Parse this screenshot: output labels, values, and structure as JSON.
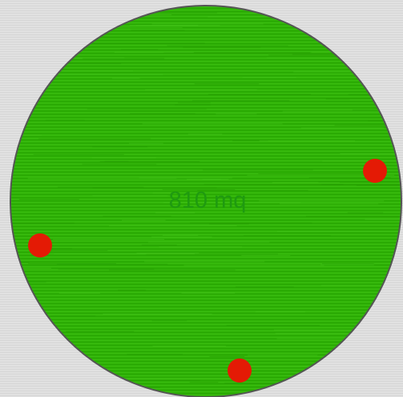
{
  "lawn": {
    "area_label": "810 mq",
    "fill_color": "#2fb106",
    "stroke_color": "#555555"
  },
  "sprinklers": {
    "count": 3,
    "color": "#e41a05",
    "items": [
      {
        "name": "sprinkler-right"
      },
      {
        "name": "sprinkler-left"
      },
      {
        "name": "sprinkler-bottom"
      }
    ]
  }
}
